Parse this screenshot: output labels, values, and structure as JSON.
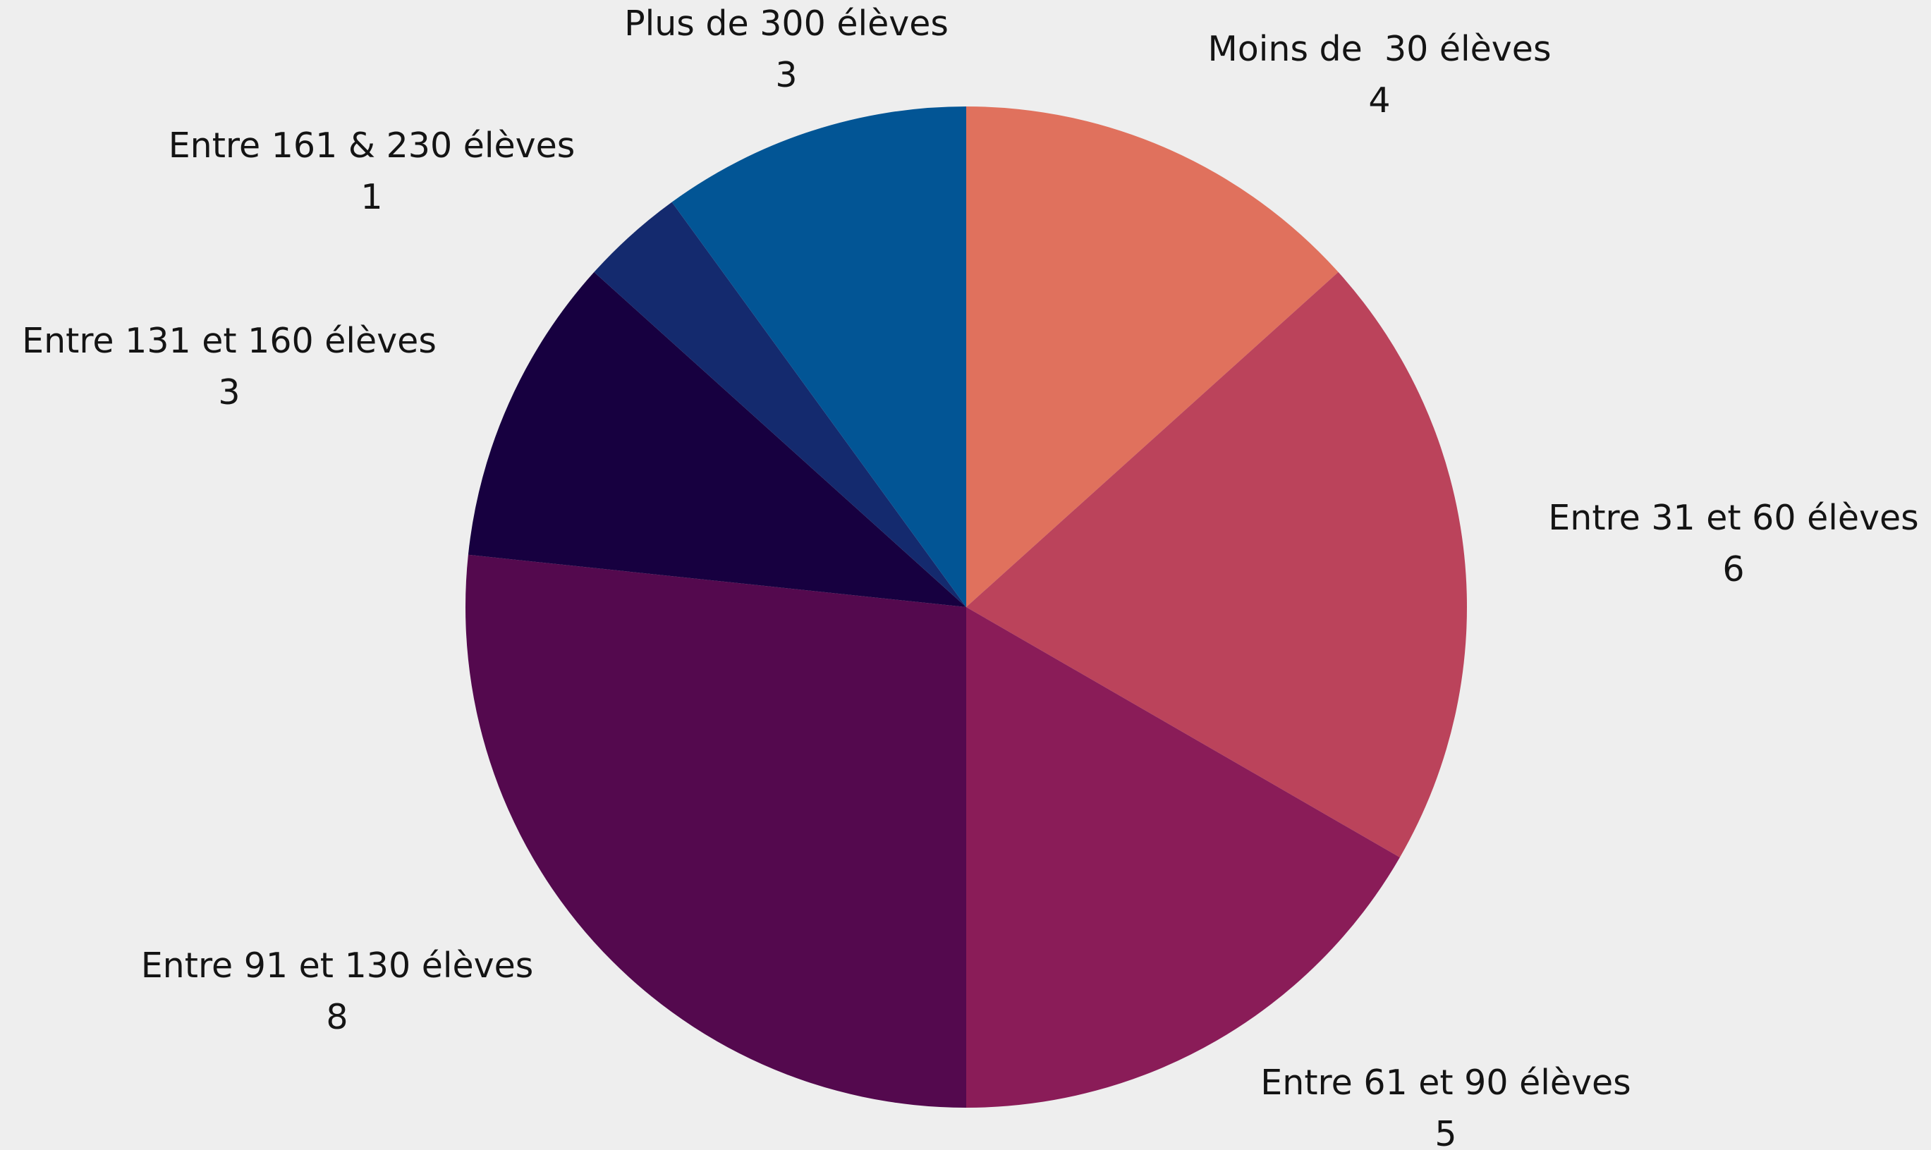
{
  "chart_data": {
    "type": "pie",
    "start_angle_deg": 0,
    "direction": "clockwise",
    "legend": "none",
    "slices": [
      {
        "label": "Moins de  30 élèves",
        "value": 4,
        "color": "#e0715d"
      },
      {
        "label": "Entre 31 et 60 élèves",
        "value": 6,
        "color": "#bb435b"
      },
      {
        "label": "Entre 61 et 90 élèves",
        "value": 5,
        "color": "#8a1c58"
      },
      {
        "label": "Entre 91 et 130 élèves",
        "value": 8,
        "color": "#54094e"
      },
      {
        "label": "Entre 131 et 160 élèves",
        "value": 3,
        "color": "#170040"
      },
      {
        "label": "Entre 161 & 230 élèves",
        "value": 1,
        "color": "#142a6e"
      },
      {
        "label": "Plus de 300 élèves",
        "value": 3,
        "color": "#025595"
      }
    ]
  }
}
